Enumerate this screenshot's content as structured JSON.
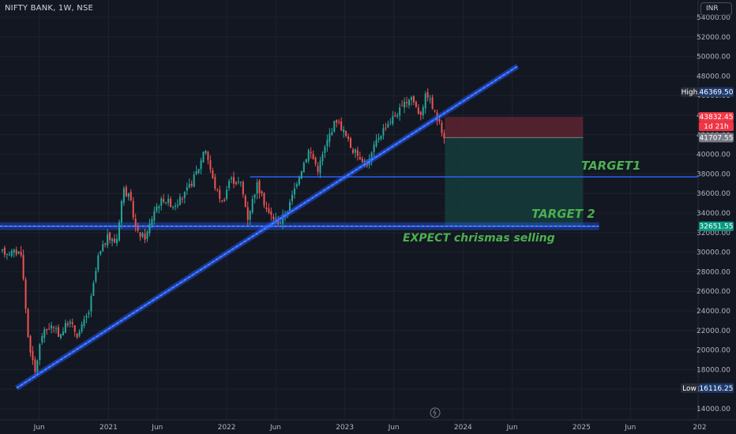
{
  "header": {
    "symbol_title": "NIFTY BANK, 1W, NSE",
    "currency": "INR"
  },
  "price_axis": {
    "ticks": [
      "14000.00",
      "16000.00",
      "18000.00",
      "20000.00",
      "22000.00",
      "24000.00",
      "26000.00",
      "28000.00",
      "30000.00",
      "32000.00",
      "34000.00",
      "36000.00",
      "38000.00",
      "40000.00",
      "42000.00",
      "44000.00",
      "46000.00",
      "48000.00",
      "50000.00",
      "52000.00",
      "54000.00"
    ]
  },
  "time_axis": {
    "labels": [
      "Jun",
      "2021",
      "Jun",
      "2022",
      "Jun",
      "2023",
      "Jun",
      "2024",
      "Jun",
      "2025",
      "Jun",
      "202"
    ]
  },
  "price_tags": {
    "high": {
      "label": "High",
      "value": "46369.50"
    },
    "low": {
      "label": "Low",
      "value": "16116.25"
    },
    "stop": "43832.45",
    "countdown": "1d 21h",
    "last": "41707.55",
    "support": "32651.55"
  },
  "annotations": {
    "target1": "TARGET1",
    "target2": "TARGET 2",
    "expect": "EXPECT chrismas selling"
  },
  "colors": {
    "background": "#131722",
    "up": "#26a69a",
    "down": "#ef5350",
    "trendline": "#2962ff",
    "annotation": "#4caf50",
    "risk_zone": "#5d2530",
    "reward_zone": "#163a3a"
  },
  "chart_data": {
    "type": "candlestick",
    "interval": "1W",
    "ylim": [
      14000,
      54000
    ],
    "x_range": [
      "2020-05",
      "2026-01"
    ],
    "price_path": [
      [
        "2020-04-06",
        30000
      ],
      [
        "2020-04-27",
        21500
      ],
      [
        "2020-05-18",
        17500
      ],
      [
        "2020-06-08",
        21500
      ],
      [
        "2020-07-06",
        22500
      ],
      [
        "2020-08-03",
        21500
      ],
      [
        "2020-08-31",
        23000
      ],
      [
        "2020-09-28",
        21500
      ],
      [
        "2020-11-02",
        24000
      ],
      [
        "2020-11-30",
        29500
      ],
      [
        "2020-12-28",
        31500
      ],
      [
        "2021-01-25",
        31000
      ],
      [
        "2021-02-15",
        36500
      ],
      [
        "2021-03-08",
        35500
      ],
      [
        "2021-03-29",
        32000
      ],
      [
        "2021-04-26",
        31500
      ],
      [
        "2021-05-24",
        34500
      ],
      [
        "2021-06-21",
        35500
      ],
      [
        "2021-07-19",
        34800
      ],
      [
        "2021-08-16",
        35500
      ],
      [
        "2021-09-13",
        37000
      ],
      [
        "2021-10-11",
        39000
      ],
      [
        "2021-10-25",
        41000
      ],
      [
        "2021-11-22",
        37000
      ],
      [
        "2021-12-20",
        35000
      ],
      [
        "2022-01-10",
        37500
      ],
      [
        "2022-02-14",
        37000
      ],
      [
        "2022-03-07",
        33500
      ],
      [
        "2022-04-04",
        37000
      ],
      [
        "2022-05-09",
        34000
      ],
      [
        "2022-06-13",
        33000
      ],
      [
        "2022-07-11",
        34500
      ],
      [
        "2022-08-08",
        37500
      ],
      [
        "2022-09-12",
        40500
      ],
      [
        "2022-10-10",
        38500
      ],
      [
        "2022-11-14",
        42000
      ],
      [
        "2022-12-05",
        43600
      ],
      [
        "2022-12-26",
        42500
      ],
      [
        "2023-01-23",
        40500
      ],
      [
        "2023-03-13",
        39000
      ],
      [
        "2023-04-10",
        41500
      ],
      [
        "2023-05-08",
        43000
      ],
      [
        "2023-06-05",
        44000
      ],
      [
        "2023-07-03",
        45000
      ],
      [
        "2023-07-24",
        46000
      ],
      [
        "2023-08-21",
        44000
      ],
      [
        "2023-09-11",
        46369.5
      ],
      [
        "2023-10-02",
        44500
      ],
      [
        "2023-10-23",
        42800
      ],
      [
        "2023-11-06",
        41707.55
      ]
    ],
    "high": 46369.5,
    "low": 16116.25,
    "last": 41707.55,
    "trendlines": [
      {
        "from": [
          "2020-03-23",
          16116.25
        ],
        "to": [
          "2024-06-17",
          49000
        ]
      },
      {
        "from": [
          "2020-05-01",
          32651.55
        ],
        "to": [
          "2025-02-24",
          32651.55
        ]
      },
      {
        "from": [
          "2022-03-14",
          37700
        ],
        "to": [
          "2026-01-01",
          37700
        ]
      }
    ],
    "short_position": {
      "start": "2023-11-06",
      "end": "2025-01-06",
      "entry": 41707.55,
      "stop": 43832.45,
      "target": 32651.55
    }
  }
}
